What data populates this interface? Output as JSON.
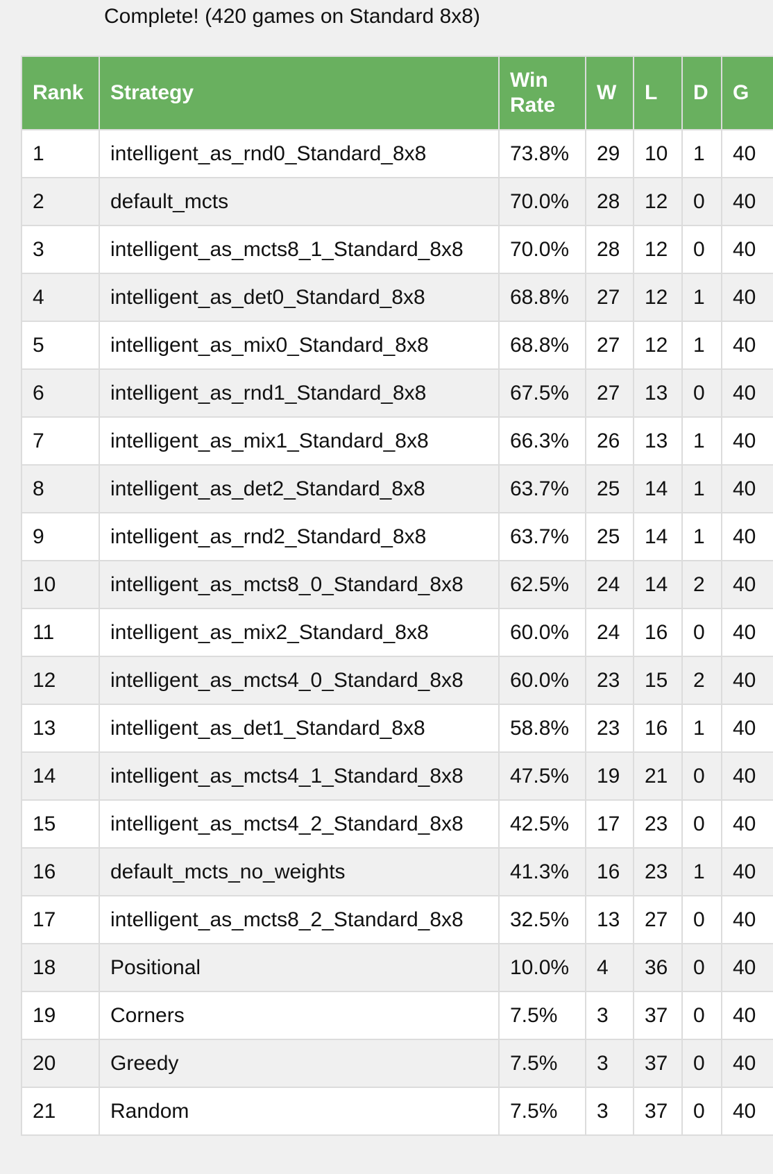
{
  "status": "Complete! (420 games on Standard 8x8)",
  "colors": {
    "header_bg": "#69b05f",
    "header_text": "#ffffff",
    "row_alt": "#f0f0f0"
  },
  "table": {
    "headers": [
      "Rank",
      "Strategy",
      "Win Rate",
      "W",
      "L",
      "D",
      "G"
    ],
    "rows": [
      [
        "1",
        "intelligent_as_rnd0_Standard_8x8",
        "73.8%",
        "29",
        "10",
        "1",
        "40"
      ],
      [
        "2",
        "default_mcts",
        "70.0%",
        "28",
        "12",
        "0",
        "40"
      ],
      [
        "3",
        "intelligent_as_mcts8_1_Standard_8x8",
        "70.0%",
        "28",
        "12",
        "0",
        "40"
      ],
      [
        "4",
        "intelligent_as_det0_Standard_8x8",
        "68.8%",
        "27",
        "12",
        "1",
        "40"
      ],
      [
        "5",
        "intelligent_as_mix0_Standard_8x8",
        "68.8%",
        "27",
        "12",
        "1",
        "40"
      ],
      [
        "6",
        "intelligent_as_rnd1_Standard_8x8",
        "67.5%",
        "27",
        "13",
        "0",
        "40"
      ],
      [
        "7",
        "intelligent_as_mix1_Standard_8x8",
        "66.3%",
        "26",
        "13",
        "1",
        "40"
      ],
      [
        "8",
        "intelligent_as_det2_Standard_8x8",
        "63.7%",
        "25",
        "14",
        "1",
        "40"
      ],
      [
        "9",
        "intelligent_as_rnd2_Standard_8x8",
        "63.7%",
        "25",
        "14",
        "1",
        "40"
      ],
      [
        "10",
        "intelligent_as_mcts8_0_Standard_8x8",
        "62.5%",
        "24",
        "14",
        "2",
        "40"
      ],
      [
        "11",
        "intelligent_as_mix2_Standard_8x8",
        "60.0%",
        "24",
        "16",
        "0",
        "40"
      ],
      [
        "12",
        "intelligent_as_mcts4_0_Standard_8x8",
        "60.0%",
        "23",
        "15",
        "2",
        "40"
      ],
      [
        "13",
        "intelligent_as_det1_Standard_8x8",
        "58.8%",
        "23",
        "16",
        "1",
        "40"
      ],
      [
        "14",
        "intelligent_as_mcts4_1_Standard_8x8",
        "47.5%",
        "19",
        "21",
        "0",
        "40"
      ],
      [
        "15",
        "intelligent_as_mcts4_2_Standard_8x8",
        "42.5%",
        "17",
        "23",
        "0",
        "40"
      ],
      [
        "16",
        "default_mcts_no_weights",
        "41.3%",
        "16",
        "23",
        "1",
        "40"
      ],
      [
        "17",
        "intelligent_as_mcts8_2_Standard_8x8",
        "32.5%",
        "13",
        "27",
        "0",
        "40"
      ],
      [
        "18",
        "Positional",
        "10.0%",
        "4",
        "36",
        "0",
        "40"
      ],
      [
        "19",
        "Corners",
        "7.5%",
        "3",
        "37",
        "0",
        "40"
      ],
      [
        "20",
        "Greedy",
        "7.5%",
        "3",
        "37",
        "0",
        "40"
      ],
      [
        "21",
        "Random",
        "7.5%",
        "3",
        "37",
        "0",
        "40"
      ]
    ]
  }
}
